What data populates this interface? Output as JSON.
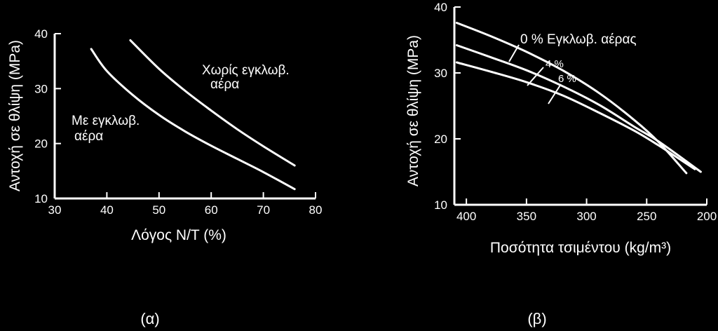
{
  "colors": {
    "panel": "#000000",
    "ink": "#ffffff",
    "paper": "#ffffff",
    "caption": "#000000"
  },
  "chart_data": [
    {
      "type": "line",
      "panel_label": "(α)",
      "xlabel": "Λόγος N/T (%)",
      "ylabel": "Αντοχή σε θλίψη (MPa)",
      "xlim": [
        30,
        80
      ],
      "ylim": [
        10,
        40
      ],
      "xticks": [
        30,
        40,
        50,
        60,
        70,
        80
      ],
      "yticks": [
        10,
        20,
        30,
        40
      ],
      "grid": false,
      "series": [
        {
          "name": "Χωρίς εγκλωβ. αέρα",
          "x": [
            44.5,
            50,
            55,
            60,
            65,
            70,
            76
          ],
          "y": [
            38.8,
            33.6,
            29.6,
            26,
            22.6,
            19.5,
            16
          ]
        },
        {
          "name": "Με εγκλωβ. αέρα",
          "x": [
            37,
            40,
            45,
            50,
            55,
            60,
            65,
            70,
            76
          ],
          "y": [
            37.2,
            33.2,
            28.8,
            25.2,
            22.2,
            19.6,
            17.2,
            14.8,
            11.7
          ]
        }
      ],
      "annotations": [
        {
          "lines": [
            "Χωρίς εγκλωβ.",
            "αέρα"
          ]
        },
        {
          "lines": [
            "Με εγκλωβ.",
            "αέρα"
          ]
        }
      ]
    },
    {
      "type": "line",
      "panel_label": "(β)",
      "xlabel": "Ποσότητα τσιμέντου (kg/m³)",
      "ylabel": "Αντοχή σε θλίψη (MPa)",
      "xlim": [
        410,
        200
      ],
      "ylim": [
        10,
        40
      ],
      "xticks": [
        400,
        350,
        300,
        250,
        200
      ],
      "yticks": [
        10,
        20,
        30,
        40
      ],
      "grid": false,
      "series": [
        {
          "name": "0 % Εγκλωβ. αέρας",
          "x": [
            408,
            380,
            350,
            320,
            290,
            260,
            240,
            217
          ],
          "y": [
            37.6,
            35.6,
            33.2,
            30.4,
            27.0,
            22.8,
            19.5,
            14.8
          ]
        },
        {
          "name": "4 %",
          "x": [
            408,
            380,
            350,
            320,
            290,
            260,
            240,
            205
          ],
          "y": [
            34.2,
            32.4,
            30.4,
            28.0,
            25.2,
            21.8,
            19.6,
            15.0
          ]
        },
        {
          "name": "6 %",
          "x": [
            408,
            380,
            350,
            320,
            290,
            260,
            240,
            210
          ],
          "y": [
            31.6,
            30.2,
            28.6,
            26.6,
            24.0,
            21.2,
            19.0,
            15.4
          ]
        }
      ],
      "annotations": [
        {
          "text": "0 % Εγκλωβ. αέρας"
        },
        {
          "text": "4 %"
        },
        {
          "text": "6 %"
        }
      ]
    }
  ]
}
